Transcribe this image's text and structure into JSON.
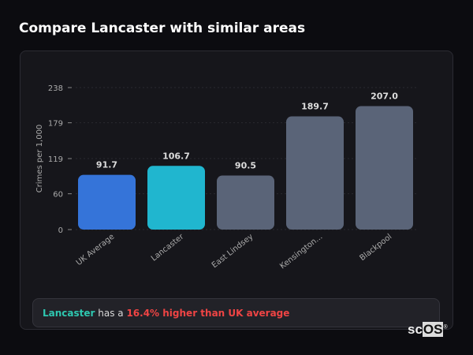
{
  "title": "Compare Lancaster with similar areas",
  "chart_data": {
    "type": "bar",
    "categories": [
      "UK Average",
      "Lancaster",
      "East Lindsey",
      "Kensington...",
      "Blackpool"
    ],
    "values": [
      91.7,
      106.7,
      90.5,
      189.7,
      207.0
    ],
    "value_labels": [
      "91.7",
      "106.7",
      "90.5",
      "189.7",
      "207.0"
    ],
    "colors": [
      "#3574d9",
      "#20b6cf",
      "#5a6478",
      "#5a6478",
      "#5a6478"
    ],
    "ylabel": "Crimes per 1,000",
    "yticks": [
      0,
      60,
      119,
      179,
      238
    ],
    "ylim": [
      0,
      238
    ],
    "grid": true
  },
  "note": {
    "area": "Lancaster",
    "mid": " has a ",
    "comparison": "16.4% higher than UK average"
  },
  "logo": {
    "text": "scOS"
  }
}
